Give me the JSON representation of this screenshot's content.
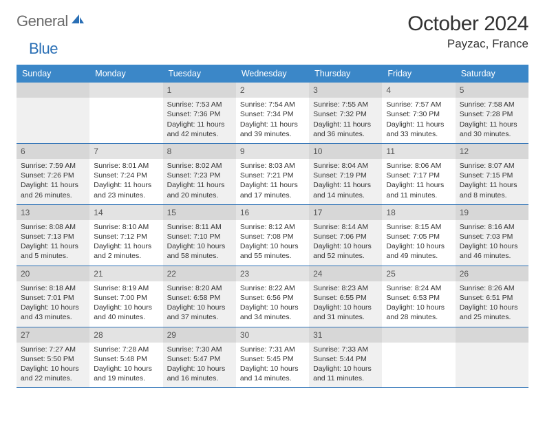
{
  "logo": {
    "text1": "General",
    "text2": "Blue"
  },
  "title": "October 2024",
  "location": "Payzac, France",
  "colors": {
    "header_bg": "#3b87c8",
    "rule": "#2a6fb5",
    "daynum_bg": "#e3e3e3",
    "shade_bg": "#f0f0f0",
    "text": "#333333"
  },
  "dayNames": [
    "Sunday",
    "Monday",
    "Tuesday",
    "Wednesday",
    "Thursday",
    "Friday",
    "Saturday"
  ],
  "weeks": [
    [
      {
        "n": "",
        "shade": true
      },
      {
        "n": "",
        "shade": false
      },
      {
        "n": "1",
        "shade": true,
        "sr": "Sunrise: 7:53 AM",
        "ss": "Sunset: 7:36 PM",
        "dl": "Daylight: 11 hours and 42 minutes."
      },
      {
        "n": "2",
        "shade": false,
        "sr": "Sunrise: 7:54 AM",
        "ss": "Sunset: 7:34 PM",
        "dl": "Daylight: 11 hours and 39 minutes."
      },
      {
        "n": "3",
        "shade": true,
        "sr": "Sunrise: 7:55 AM",
        "ss": "Sunset: 7:32 PM",
        "dl": "Daylight: 11 hours and 36 minutes."
      },
      {
        "n": "4",
        "shade": false,
        "sr": "Sunrise: 7:57 AM",
        "ss": "Sunset: 7:30 PM",
        "dl": "Daylight: 11 hours and 33 minutes."
      },
      {
        "n": "5",
        "shade": true,
        "sr": "Sunrise: 7:58 AM",
        "ss": "Sunset: 7:28 PM",
        "dl": "Daylight: 11 hours and 30 minutes."
      }
    ],
    [
      {
        "n": "6",
        "shade": true,
        "sr": "Sunrise: 7:59 AM",
        "ss": "Sunset: 7:26 PM",
        "dl": "Daylight: 11 hours and 26 minutes."
      },
      {
        "n": "7",
        "shade": false,
        "sr": "Sunrise: 8:01 AM",
        "ss": "Sunset: 7:24 PM",
        "dl": "Daylight: 11 hours and 23 minutes."
      },
      {
        "n": "8",
        "shade": true,
        "sr": "Sunrise: 8:02 AM",
        "ss": "Sunset: 7:23 PM",
        "dl": "Daylight: 11 hours and 20 minutes."
      },
      {
        "n": "9",
        "shade": false,
        "sr": "Sunrise: 8:03 AM",
        "ss": "Sunset: 7:21 PM",
        "dl": "Daylight: 11 hours and 17 minutes."
      },
      {
        "n": "10",
        "shade": true,
        "sr": "Sunrise: 8:04 AM",
        "ss": "Sunset: 7:19 PM",
        "dl": "Daylight: 11 hours and 14 minutes."
      },
      {
        "n": "11",
        "shade": false,
        "sr": "Sunrise: 8:06 AM",
        "ss": "Sunset: 7:17 PM",
        "dl": "Daylight: 11 hours and 11 minutes."
      },
      {
        "n": "12",
        "shade": true,
        "sr": "Sunrise: 8:07 AM",
        "ss": "Sunset: 7:15 PM",
        "dl": "Daylight: 11 hours and 8 minutes."
      }
    ],
    [
      {
        "n": "13",
        "shade": true,
        "sr": "Sunrise: 8:08 AM",
        "ss": "Sunset: 7:13 PM",
        "dl": "Daylight: 11 hours and 5 minutes."
      },
      {
        "n": "14",
        "shade": false,
        "sr": "Sunrise: 8:10 AM",
        "ss": "Sunset: 7:12 PM",
        "dl": "Daylight: 11 hours and 2 minutes."
      },
      {
        "n": "15",
        "shade": true,
        "sr": "Sunrise: 8:11 AM",
        "ss": "Sunset: 7:10 PM",
        "dl": "Daylight: 10 hours and 58 minutes."
      },
      {
        "n": "16",
        "shade": false,
        "sr": "Sunrise: 8:12 AM",
        "ss": "Sunset: 7:08 PM",
        "dl": "Daylight: 10 hours and 55 minutes."
      },
      {
        "n": "17",
        "shade": true,
        "sr": "Sunrise: 8:14 AM",
        "ss": "Sunset: 7:06 PM",
        "dl": "Daylight: 10 hours and 52 minutes."
      },
      {
        "n": "18",
        "shade": false,
        "sr": "Sunrise: 8:15 AM",
        "ss": "Sunset: 7:05 PM",
        "dl": "Daylight: 10 hours and 49 minutes."
      },
      {
        "n": "19",
        "shade": true,
        "sr": "Sunrise: 8:16 AM",
        "ss": "Sunset: 7:03 PM",
        "dl": "Daylight: 10 hours and 46 minutes."
      }
    ],
    [
      {
        "n": "20",
        "shade": true,
        "sr": "Sunrise: 8:18 AM",
        "ss": "Sunset: 7:01 PM",
        "dl": "Daylight: 10 hours and 43 minutes."
      },
      {
        "n": "21",
        "shade": false,
        "sr": "Sunrise: 8:19 AM",
        "ss": "Sunset: 7:00 PM",
        "dl": "Daylight: 10 hours and 40 minutes."
      },
      {
        "n": "22",
        "shade": true,
        "sr": "Sunrise: 8:20 AM",
        "ss": "Sunset: 6:58 PM",
        "dl": "Daylight: 10 hours and 37 minutes."
      },
      {
        "n": "23",
        "shade": false,
        "sr": "Sunrise: 8:22 AM",
        "ss": "Sunset: 6:56 PM",
        "dl": "Daylight: 10 hours and 34 minutes."
      },
      {
        "n": "24",
        "shade": true,
        "sr": "Sunrise: 8:23 AM",
        "ss": "Sunset: 6:55 PM",
        "dl": "Daylight: 10 hours and 31 minutes."
      },
      {
        "n": "25",
        "shade": false,
        "sr": "Sunrise: 8:24 AM",
        "ss": "Sunset: 6:53 PM",
        "dl": "Daylight: 10 hours and 28 minutes."
      },
      {
        "n": "26",
        "shade": true,
        "sr": "Sunrise: 8:26 AM",
        "ss": "Sunset: 6:51 PM",
        "dl": "Daylight: 10 hours and 25 minutes."
      }
    ],
    [
      {
        "n": "27",
        "shade": true,
        "sr": "Sunrise: 7:27 AM",
        "ss": "Sunset: 5:50 PM",
        "dl": "Daylight: 10 hours and 22 minutes."
      },
      {
        "n": "28",
        "shade": false,
        "sr": "Sunrise: 7:28 AM",
        "ss": "Sunset: 5:48 PM",
        "dl": "Daylight: 10 hours and 19 minutes."
      },
      {
        "n": "29",
        "shade": true,
        "sr": "Sunrise: 7:30 AM",
        "ss": "Sunset: 5:47 PM",
        "dl": "Daylight: 10 hours and 16 minutes."
      },
      {
        "n": "30",
        "shade": false,
        "sr": "Sunrise: 7:31 AM",
        "ss": "Sunset: 5:45 PM",
        "dl": "Daylight: 10 hours and 14 minutes."
      },
      {
        "n": "31",
        "shade": true,
        "sr": "Sunrise: 7:33 AM",
        "ss": "Sunset: 5:44 PM",
        "dl": "Daylight: 10 hours and 11 minutes."
      },
      {
        "n": "",
        "shade": false
      },
      {
        "n": "",
        "shade": true
      }
    ]
  ]
}
